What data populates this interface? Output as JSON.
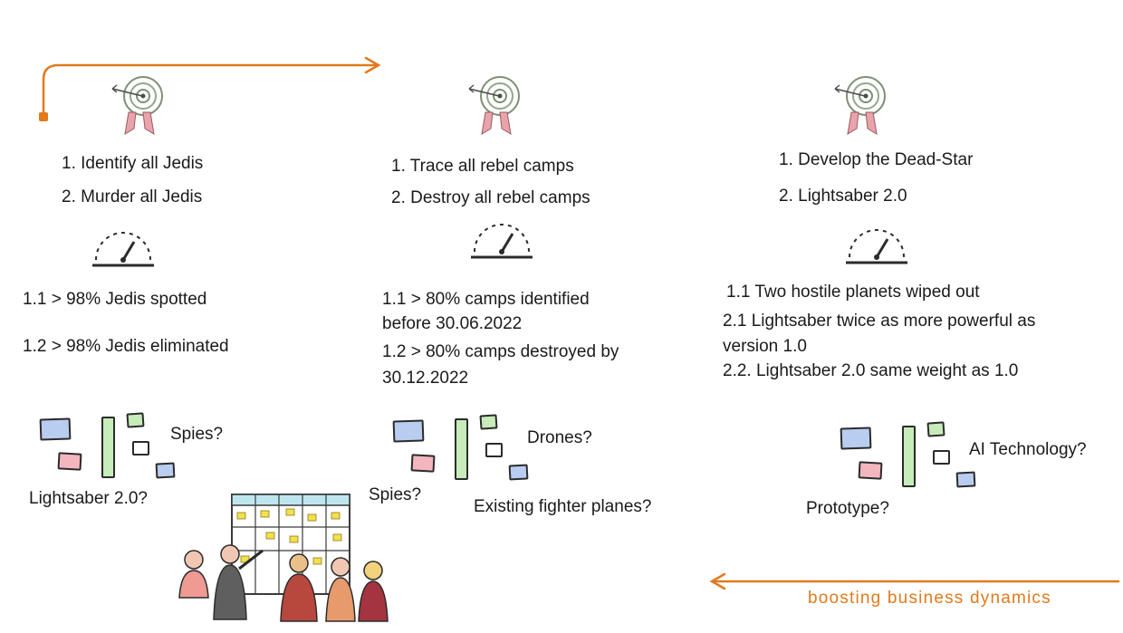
{
  "columns": [
    {
      "objectives": [
        "1. Identify all Jedis",
        "2. Murder all Jedis"
      ],
      "key_results": [
        "1.1 > 98% Jedis spotted",
        "1.2 > 98% Jedis eliminated"
      ],
      "initiatives": [
        "Spies?",
        "Lightsaber 2.0?"
      ]
    },
    {
      "objectives": [
        "1. Trace all rebel camps",
        "2. Destroy all rebel camps"
      ],
      "key_results": [
        "1.1 > 80% camps identified",
        "before 30.06.2022",
        "1.2 > 80% camps destroyed by",
        "30.12.2022"
      ],
      "initiatives": [
        "Drones?",
        "Spies?",
        "Existing fighter planes?"
      ]
    },
    {
      "objectives": [
        "1. Develop the Dead-Star",
        "2. Lightsaber 2.0"
      ],
      "key_results": [
        "1.1 Two hostile planets wiped out",
        "2.1 Lightsaber twice as more powerful as",
        "version 1.0",
        "2.2. Lightsaber 2.0 same weight as 1.0"
      ],
      "initiatives": [
        "AI Technology?",
        "Prototype?"
      ]
    }
  ],
  "tagline": "boosting business dynamics",
  "colors": {
    "accent_orange": "#e07a1c",
    "sticky_blue": "#b9cdf0",
    "sticky_pink": "#f3b6bf",
    "sticky_green": "#c7ecb9",
    "target_red": "#e8a3ab",
    "board_header": "#bfe6ef",
    "board_note": "#f4e04d"
  },
  "icons": [
    "target-icon",
    "speedometer-icon",
    "sticky-notes-icon",
    "team-board-illustration",
    "orange-arrow-right",
    "orange-arrow-left"
  ]
}
